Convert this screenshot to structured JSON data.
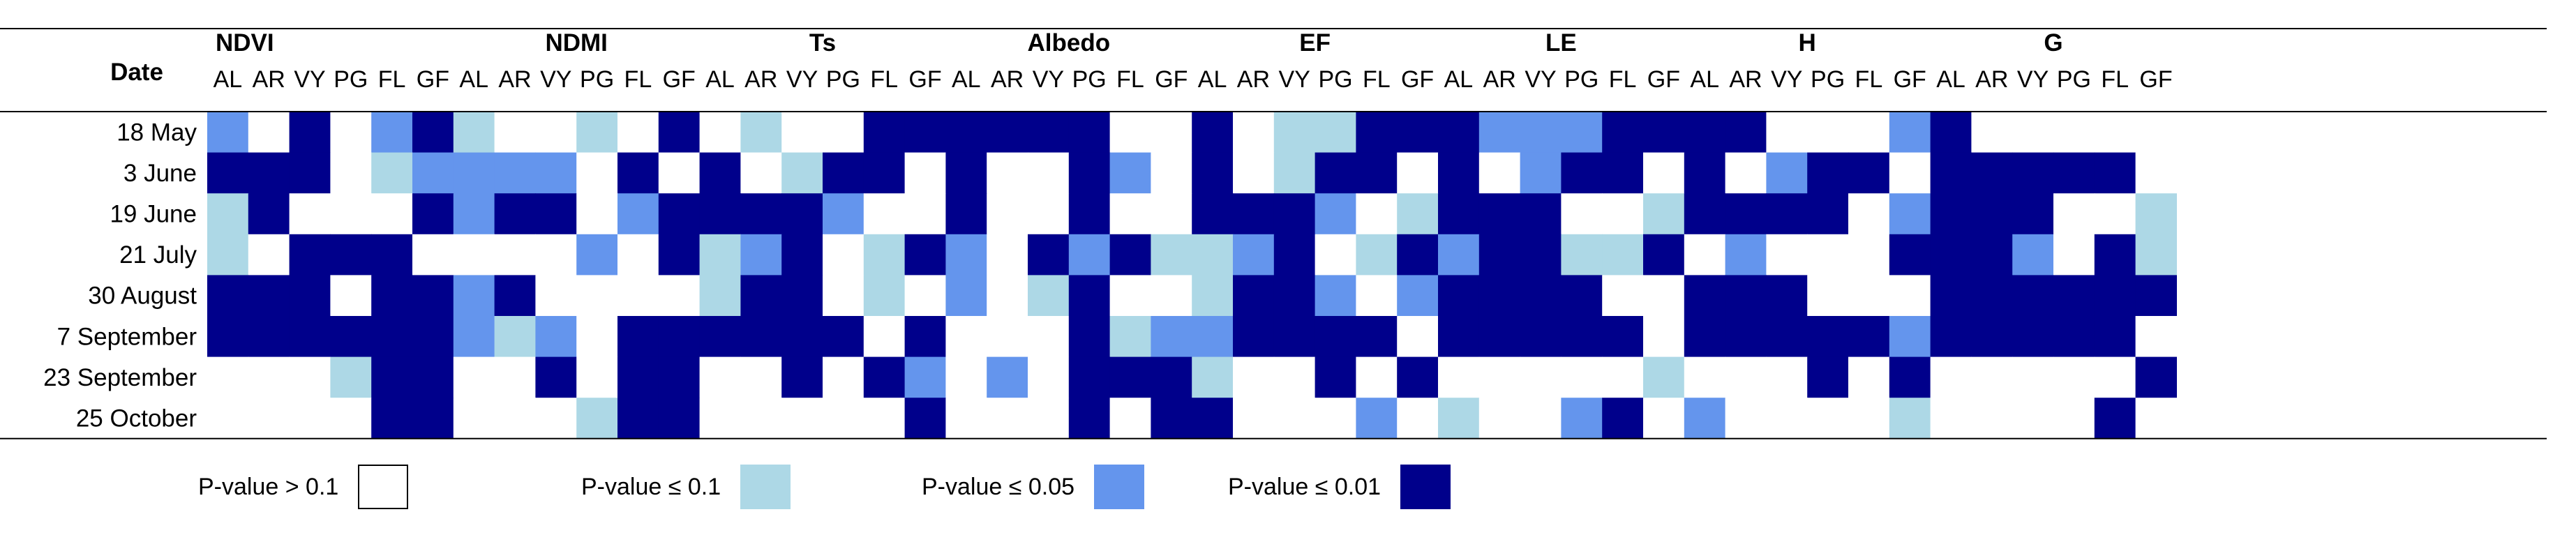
{
  "chart_data": {
    "type": "heatmap",
    "row_header": "Date",
    "rows": [
      "18 May",
      "3 June",
      "19 June",
      "21 July",
      "30 August",
      "7 September",
      "23 September",
      "25 October"
    ],
    "groups": [
      {
        "name": "NDVI",
        "subs": [
          "AL",
          "AR",
          "VY",
          "PG",
          "FL",
          "GF"
        ]
      },
      {
        "name": "NDMI",
        "subs": [
          "AL",
          "AR",
          "VY",
          "PG",
          "FL",
          "GF"
        ]
      },
      {
        "name": "Ts",
        "subs": [
          "AL",
          "AR",
          "VY",
          "PG",
          "FL",
          "GF"
        ]
      },
      {
        "name": "Albedo",
        "subs": [
          "AL",
          "AR",
          "VY",
          "PG",
          "FL",
          "GF"
        ]
      },
      {
        "name": "EF",
        "subs": [
          "AL",
          "AR",
          "VY",
          "PG",
          "FL",
          "GF"
        ]
      },
      {
        "name": "LE",
        "subs": [
          "AL",
          "AR",
          "VY",
          "PG",
          "FL",
          "GF"
        ]
      },
      {
        "name": "H",
        "subs": [
          "AL",
          "AR",
          "VY",
          "PG",
          "FL",
          "GF"
        ]
      },
      {
        "name": "G",
        "subs": [
          "AL",
          "AR",
          "VY",
          "PG",
          "FL",
          "GF"
        ]
      }
    ],
    "levels": [
      {
        "label": "P-value > 0.1",
        "color": "#ffffff"
      },
      {
        "label": "P-value ≤ 0.1",
        "color": "#add8e6"
      },
      {
        "label": "P-value ≤ 0.05",
        "color": "#6495ed"
      },
      {
        "label": "P-value ≤ 0.01",
        "color": "#00008b"
      }
    ],
    "values": [
      [
        2,
        0,
        3,
        0,
        2,
        3,
        1,
        0,
        0,
        1,
        0,
        3,
        0,
        1,
        0,
        0,
        3,
        3,
        3,
        3,
        3,
        3,
        0,
        0,
        3,
        0,
        1,
        1,
        3,
        3,
        3,
        2,
        2,
        2,
        3,
        3,
        3,
        3,
        0,
        0,
        0,
        2,
        3,
        0,
        0,
        0,
        0,
        0
      ],
      [
        3,
        3,
        3,
        0,
        1,
        2,
        2,
        2,
        2,
        0,
        3,
        0,
        3,
        0,
        1,
        3,
        3,
        0,
        3,
        0,
        0,
        3,
        2,
        0,
        3,
        0,
        1,
        3,
        3,
        0,
        3,
        0,
        2,
        3,
        3,
        0,
        3,
        0,
        2,
        3,
        3,
        0,
        3,
        3,
        3,
        3,
        3,
        0
      ],
      [
        1,
        3,
        0,
        0,
        0,
        3,
        2,
        3,
        3,
        0,
        2,
        3,
        3,
        3,
        3,
        2,
        0,
        0,
        3,
        0,
        0,
        3,
        0,
        0,
        3,
        3,
        3,
        2,
        0,
        1,
        3,
        3,
        3,
        0,
        0,
        1,
        3,
        3,
        3,
        3,
        0,
        2,
        3,
        3,
        3,
        0,
        0,
        1
      ],
      [
        1,
        0,
        3,
        3,
        3,
        0,
        0,
        0,
        0,
        2,
        0,
        3,
        1,
        2,
        3,
        0,
        1,
        3,
        2,
        0,
        3,
        2,
        3,
        1,
        1,
        2,
        3,
        0,
        1,
        3,
        2,
        3,
        3,
        1,
        1,
        3,
        0,
        2,
        0,
        0,
        0,
        3,
        3,
        3,
        2,
        0,
        3,
        1
      ],
      [
        3,
        3,
        3,
        0,
        3,
        3,
        2,
        3,
        0,
        0,
        0,
        0,
        1,
        3,
        3,
        0,
        1,
        0,
        2,
        0,
        1,
        3,
        0,
        0,
        1,
        3,
        3,
        2,
        0,
        2,
        3,
        3,
        3,
        3,
        0,
        0,
        3,
        3,
        3,
        0,
        0,
        0,
        3,
        3,
        3,
        3,
        3,
        3
      ],
      [
        3,
        3,
        3,
        3,
        3,
        3,
        2,
        1,
        2,
        0,
        3,
        3,
        3,
        3,
        3,
        3,
        0,
        3,
        0,
        0,
        0,
        3,
        1,
        2,
        2,
        3,
        3,
        3,
        3,
        0,
        3,
        3,
        3,
        3,
        3,
        0,
        3,
        3,
        3,
        3,
        3,
        2,
        3,
        3,
        3,
        3,
        3,
        0
      ],
      [
        0,
        0,
        0,
        1,
        3,
        3,
        0,
        0,
        3,
        0,
        3,
        3,
        0,
        0,
        3,
        0,
        3,
        2,
        0,
        2,
        0,
        3,
        3,
        3,
        1,
        0,
        0,
        3,
        0,
        3,
        0,
        0,
        0,
        0,
        0,
        1,
        0,
        0,
        0,
        3,
        0,
        3,
        0,
        0,
        0,
        0,
        0,
        3
      ],
      [
        0,
        0,
        0,
        0,
        3,
        3,
        0,
        0,
        0,
        1,
        3,
        3,
        0,
        0,
        0,
        0,
        0,
        3,
        0,
        0,
        0,
        3,
        0,
        3,
        3,
        0,
        0,
        0,
        2,
        0,
        1,
        0,
        0,
        2,
        3,
        0,
        2,
        0,
        0,
        0,
        0,
        1,
        0,
        0,
        0,
        0,
        3,
        0
      ]
    ]
  }
}
